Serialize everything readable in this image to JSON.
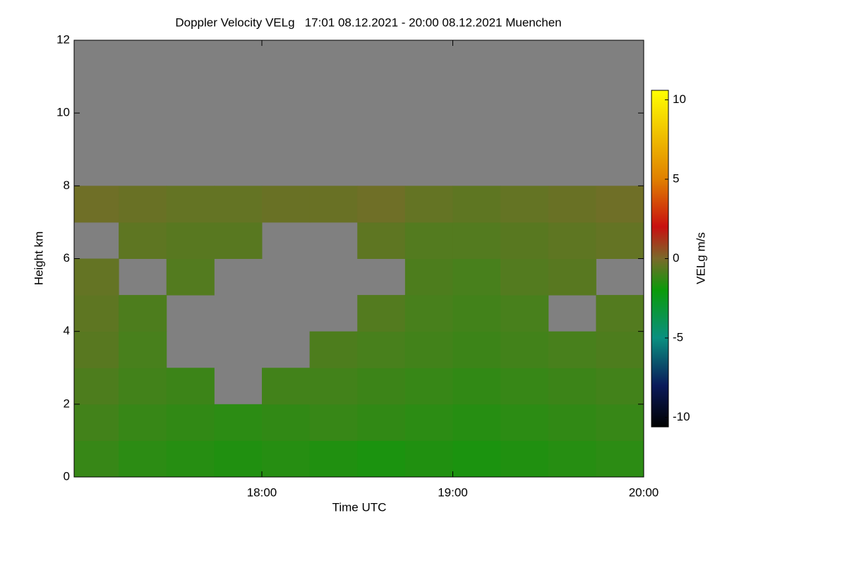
{
  "chart_data": {
    "type": "heatmap",
    "title": "Doppler Velocity VELg   17:01 08.12.2021 - 20:00 08.12.2021 Muenchen",
    "x_label": "Time UTC",
    "y_label": "Height km",
    "colorbar_label": "VELg m/s",
    "xbins": [
      17.0167,
      17.25,
      17.5,
      17.75,
      18.0,
      18.25,
      18.5,
      18.75,
      19.0,
      19.25,
      19.5,
      19.75,
      20.0
    ],
    "ybins": [
      0,
      1,
      2,
      3,
      4,
      5,
      6,
      7,
      8,
      9,
      10,
      11,
      12
    ],
    "values": [
      [
        -1.2,
        -1.4,
        -1.5,
        -1.6,
        -1.5,
        -1.6,
        -1.7,
        -1.6,
        -1.7,
        -1.6,
        -1.5,
        -1.4
      ],
      [
        -1.0,
        -1.2,
        -1.3,
        -1.4,
        -1.3,
        -1.2,
        -1.3,
        -1.4,
        -1.5,
        -1.4,
        -1.3,
        -1.2
      ],
      [
        -0.8,
        -1.0,
        -1.1,
        null,
        -1.0,
        -1.0,
        -1.1,
        -1.2,
        -1.3,
        -1.2,
        -1.1,
        -1.0
      ],
      [
        -0.6,
        -0.9,
        null,
        null,
        null,
        -0.8,
        -0.9,
        -1.0,
        -1.1,
        -1.0,
        -0.9,
        -0.8
      ],
      [
        -0.5,
        -0.8,
        null,
        null,
        null,
        null,
        -0.7,
        -0.9,
        -1.0,
        -0.9,
        null,
        -0.7
      ],
      [
        -0.4,
        null,
        -0.7,
        null,
        null,
        null,
        null,
        -0.8,
        -0.9,
        -0.7,
        -0.6,
        null
      ],
      [
        null,
        -0.5,
        -0.6,
        -0.6,
        null,
        null,
        -0.5,
        -0.7,
        -0.7,
        -0.6,
        -0.5,
        -0.4
      ],
      [
        -0.2,
        -0.3,
        -0.4,
        -0.4,
        -0.3,
        -0.3,
        -0.2,
        -0.4,
        -0.5,
        -0.4,
        -0.3,
        -0.2
      ],
      [
        null,
        null,
        null,
        null,
        null,
        null,
        null,
        null,
        null,
        null,
        null,
        null
      ],
      [
        null,
        null,
        null,
        null,
        null,
        null,
        null,
        null,
        null,
        null,
        null,
        null
      ],
      [
        null,
        null,
        null,
        null,
        null,
        null,
        null,
        null,
        null,
        null,
        null,
        null
      ],
      [
        null,
        null,
        null,
        null,
        null,
        null,
        null,
        null,
        null,
        null,
        null,
        null
      ]
    ],
    "xlim": [
      17.0167,
      20.0
    ],
    "xticks": [
      {
        "value": 18,
        "label": "18:00"
      },
      {
        "value": 19,
        "label": "19:00"
      },
      {
        "value": 20,
        "label": "20:00"
      }
    ],
    "ylim": [
      0,
      12
    ],
    "yticks": [
      0,
      2,
      4,
      6,
      8,
      10,
      12
    ],
    "zlim": [
      -10.6,
      10.6
    ],
    "zticks": [
      -10,
      -5,
      0,
      5,
      10
    ],
    "colorscale": [
      [
        -10.6,
        "#000000"
      ],
      [
        -8,
        "#0a1a5a"
      ],
      [
        -5,
        "#0a9080"
      ],
      [
        -2,
        "#0a9a0a"
      ],
      [
        0,
        "#7a6a2a"
      ],
      [
        2,
        "#c81010"
      ],
      [
        5,
        "#e08000"
      ],
      [
        10.6,
        "#ffff00"
      ]
    ],
    "missing_color": "#808080"
  }
}
